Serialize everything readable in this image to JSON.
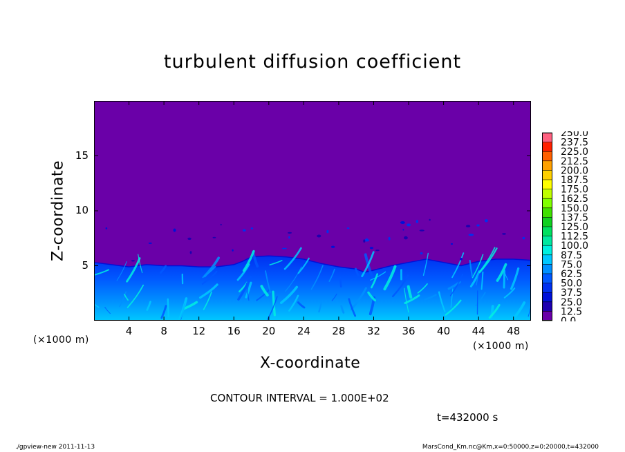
{
  "chart_data": {
    "type": "heatmap",
    "title": "turbulent diffusion coefficient",
    "xlabel": "X-coordinate",
    "ylabel": "Z-coordinate",
    "x_unit_left": "(×1000 m)",
    "x_unit_right": "(×1000 m)",
    "xlim": [
      0,
      50
    ],
    "ylim": [
      0,
      20
    ],
    "x_ticks": [
      4,
      8,
      12,
      16,
      20,
      24,
      28,
      32,
      36,
      40,
      44,
      48
    ],
    "y_ticks": [
      5,
      10,
      15
    ],
    "background_value": 0.0,
    "colorbar": {
      "levels": [
        0.0,
        12.5,
        25.0,
        37.5,
        50.0,
        62.5,
        75.0,
        87.5,
        100.0,
        112.5,
        125.0,
        137.5,
        150.0,
        162.5,
        175.0,
        187.5,
        200.0,
        212.5,
        225.0,
        237.5,
        250.0
      ],
      "colors": [
        "#6a00a8",
        "#1e00b0",
        "#0010d8",
        "#0030f0",
        "#0058ff",
        "#0090ff",
        "#00c8ff",
        "#00f0e0",
        "#00e8a0",
        "#00e060",
        "#10d020",
        "#40e000",
        "#80ff00",
        "#c0ff00",
        "#ffff00",
        "#ffd000",
        "#ffa000",
        "#ff6000",
        "#ff2000",
        "#ff6080"
      ]
    },
    "boundary_layer_top": [
      [
        0,
        5.3
      ],
      [
        2,
        5.1
      ],
      [
        4,
        4.9
      ],
      [
        6,
        5.1
      ],
      [
        8,
        5.0
      ],
      [
        10,
        5.0
      ],
      [
        12,
        4.9
      ],
      [
        14,
        4.9
      ],
      [
        16,
        5.1
      ],
      [
        17,
        5.4
      ],
      [
        18,
        5.8
      ],
      [
        20,
        5.9
      ],
      [
        22,
        5.8
      ],
      [
        24,
        5.6
      ],
      [
        26,
        5.2
      ],
      [
        28,
        4.9
      ],
      [
        30,
        4.7
      ],
      [
        31,
        4.4
      ],
      [
        32,
        4.6
      ],
      [
        34,
        5.0
      ],
      [
        36,
        5.3
      ],
      [
        38,
        5.6
      ],
      [
        40,
        5.3
      ],
      [
        42,
        5.0
      ],
      [
        44,
        5.4
      ],
      [
        46,
        5.6
      ],
      [
        48,
        5.6
      ],
      [
        50,
        5.5
      ]
    ],
    "contour_interval": "CONTOUR INTERVAL = 1.000E+02",
    "time_label": "t=432000 s"
  },
  "footer": {
    "left": "./gpview-new 2011-11-13",
    "right": "MarsCond_Km.nc@Km,x=0:50000,z=0:20000,t=432000"
  }
}
